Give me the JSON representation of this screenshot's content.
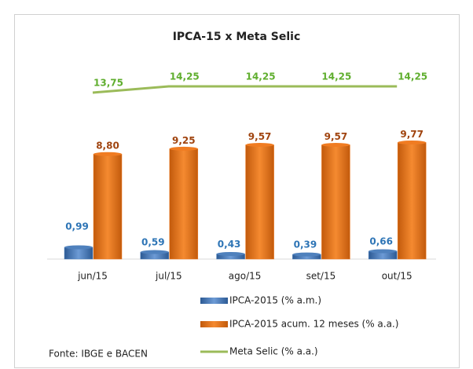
{
  "chart_data": {
    "type": "bar",
    "title": "IPCA-15 x Meta Selic",
    "categories": [
      "jun/15",
      "jul/15",
      "ago/15",
      "set/15",
      "out/15"
    ],
    "series": [
      {
        "name": "IPCA-2015 (% a.m.)",
        "color": "#4f81bd",
        "values": [
          0.99,
          0.59,
          0.43,
          0.39,
          0.66
        ],
        "value_labels": [
          "0,99",
          "0,59",
          "0,43",
          "0,39",
          "0,66"
        ]
      },
      {
        "name": "IPCA-2015 acum. 12 meses (% a.a.)",
        "color": "#f07c22",
        "values": [
          8.8,
          9.25,
          9.57,
          9.57,
          9.77
        ],
        "value_labels": [
          "8,80",
          "9,25",
          "9,57",
          "9,57",
          "9,77"
        ]
      },
      {
        "name": "Meta Selic (% a.a.)",
        "type": "line",
        "axis": "y2",
        "color": "#9bbb59",
        "values": [
          13.75,
          14.25,
          14.25,
          14.25,
          14.25
        ],
        "value_labels": [
          "13,75",
          "14,25",
          "14,25",
          "14,25",
          "14,25"
        ]
      }
    ],
    "source": "Fonte: IBGE e BACEN"
  }
}
